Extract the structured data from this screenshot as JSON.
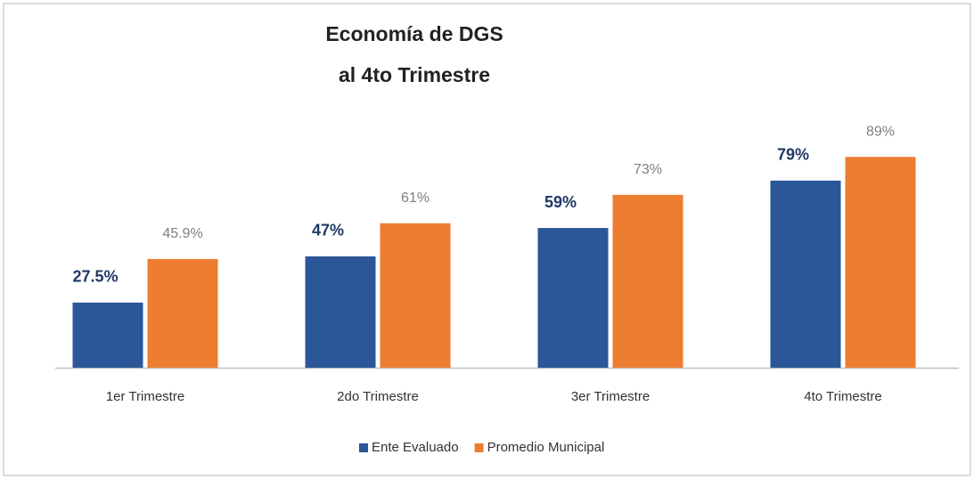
{
  "chart_data": {
    "type": "bar",
    "title": [
      "Economía de DGS",
      "al 4to Trimestre"
    ],
    "categories": [
      "1er Trimestre",
      "2do Trimestre",
      "3er Trimestre",
      "4to Trimestre"
    ],
    "series": [
      {
        "name": "Ente Evaluado",
        "color": "#2b5697",
        "values": [
          27.5,
          47,
          59,
          79
        ],
        "value_labels": [
          "27.5%",
          "47%",
          "59%",
          "79%"
        ]
      },
      {
        "name": "Promedio Municipal",
        "color": "#ed7d31",
        "values": [
          45.9,
          61,
          73,
          89
        ],
        "value_labels": [
          "45.9%",
          "61%",
          "73%",
          "89%"
        ]
      }
    ],
    "ylim": [
      0,
      100
    ],
    "grid": false,
    "legend": "bottom"
  }
}
